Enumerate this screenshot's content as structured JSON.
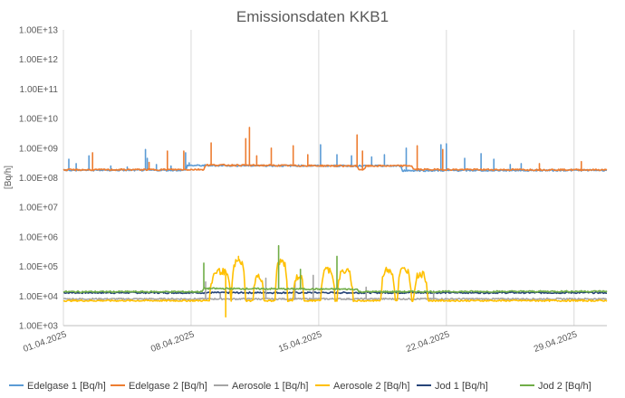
{
  "chart_data": {
    "type": "line",
    "title": "Emissionsdaten KKB1",
    "xlabel": "",
    "ylabel": "[Bq/h]",
    "yscale": "log",
    "ylim": [
      1000,
      10000000000000
    ],
    "xlim": [
      "01.04.2025",
      "30.04.2025"
    ],
    "grid": "vertical",
    "legend_position": "bottom",
    "y_tick_labels": [
      "1.00E+03",
      "1.00E+04",
      "1.00E+05",
      "1.00E+06",
      "1.00E+07",
      "1.00E+08",
      "1.00E+09",
      "1.00E+10",
      "1.00E+11",
      "1.00E+12",
      "1.00E+13"
    ],
    "x_tick_labels": [
      "01.04.2025",
      "08.04.2025",
      "15.04.2025",
      "22.04.2025",
      "29.04.2025"
    ],
    "x_unit": "day of April 2025",
    "series": [
      {
        "name": "Edelgase 1 [Bq/h]",
        "color": "#5b9bd5",
        "baseline": [
          [
            1,
            180000000
          ],
          [
            7.7,
            180000000
          ],
          [
            7.8,
            260000000
          ],
          [
            19.5,
            250000000
          ],
          [
            19.6,
            175000000
          ],
          [
            31,
            180000000
          ]
        ],
        "spikes": [
          [
            1.3,
            420000000
          ],
          [
            1.7,
            300000000
          ],
          [
            2.4,
            550000000
          ],
          [
            3.6,
            250000000
          ],
          [
            4.5,
            230000000
          ],
          [
            5.5,
            900000000
          ],
          [
            5.6,
            450000000
          ],
          [
            6.1,
            280000000
          ],
          [
            6.9,
            250000000
          ],
          [
            7.7,
            700000000
          ],
          [
            7.9,
            320000000
          ],
          [
            15.1,
            1300000000
          ],
          [
            16.0,
            600000000
          ],
          [
            16.8,
            550000000
          ],
          [
            17.9,
            500000000
          ],
          [
            18.6,
            600000000
          ],
          [
            19.8,
            1000000000
          ],
          [
            21.7,
            1300000000
          ],
          [
            22.0,
            1400000000
          ],
          [
            23.0,
            450000000
          ],
          [
            23.9,
            650000000
          ],
          [
            24.6,
            420000000
          ],
          [
            25.5,
            280000000
          ],
          [
            26.1,
            300000000
          ]
        ]
      },
      {
        "name": "Edelgase 2 [Bq/h]",
        "color": "#ed7d31",
        "baseline": [
          [
            1,
            185000000
          ],
          [
            8.7,
            190000000
          ],
          [
            8.8,
            270000000
          ],
          [
            17.1,
            250000000
          ],
          [
            17.2,
            190000000
          ],
          [
            17.5,
            190000000
          ],
          [
            17.6,
            250000000
          ],
          [
            20.1,
            255000000
          ],
          [
            20.2,
            190000000
          ],
          [
            31,
            185000000
          ]
        ],
        "spikes": [
          [
            2.6,
            700000000
          ],
          [
            5.7,
            330000000
          ],
          [
            6.7,
            800000000
          ],
          [
            7.6,
            800000000
          ],
          [
            9.1,
            1500000000
          ],
          [
            11.0,
            2100000000
          ],
          [
            11.2,
            5000000000
          ],
          [
            11.6,
            550000000
          ],
          [
            12.4,
            1000000000
          ],
          [
            13.6,
            1200000000
          ],
          [
            14.4,
            600000000
          ],
          [
            17.1,
            2800000000
          ],
          [
            17.4,
            800000000
          ],
          [
            20.4,
            1200000000
          ],
          [
            21.8,
            900000000
          ],
          [
            27.1,
            300000000
          ],
          [
            29.4,
            350000000
          ]
        ]
      },
      {
        "name": "Aerosole 1 [Bq/h]",
        "color": "#a5a5a5",
        "baseline": [
          [
            1,
            8000
          ],
          [
            31,
            8000
          ]
        ],
        "spikes": [
          [
            8.8,
            30000
          ],
          [
            9.6,
            12000
          ],
          [
            12.1,
            40000
          ],
          [
            13.7,
            30000
          ],
          [
            14.7,
            50000
          ],
          [
            17.6,
            20000
          ],
          [
            21.3,
            15000
          ]
        ]
      },
      {
        "name": "Aerosole 2 [Bq/h]",
        "color": "#ffc000",
        "baseline": [
          [
            1,
            7000
          ],
          [
            31,
            7000
          ]
        ],
        "bursts": [
          [
            9.0,
            10.2,
            70000
          ],
          [
            10.2,
            11.0,
            150000
          ],
          [
            11.4,
            12.0,
            45000
          ],
          [
            12.6,
            13.3,
            150000
          ],
          [
            13.6,
            14.2,
            45000
          ],
          [
            15.1,
            15.9,
            80000
          ],
          [
            16.0,
            16.9,
            70000
          ],
          [
            18.4,
            19.2,
            80000
          ],
          [
            19.3,
            20.1,
            80000
          ],
          [
            20.2,
            21.0,
            55000
          ]
        ],
        "spikes": [
          [
            10.6,
            220000
          ],
          [
            9.9,
            2000
          ]
        ]
      },
      {
        "name": "Jod 1 [Bq/h]",
        "color": "#264478",
        "baseline": [
          [
            1,
            13000
          ],
          [
            31,
            13000
          ]
        ],
        "spikes": []
      },
      {
        "name": "Jod 2 [Bq/h]",
        "color": "#70ad47",
        "baseline": [
          [
            1,
            14000
          ],
          [
            8.6,
            14000
          ],
          [
            8.7,
            18000
          ],
          [
            17.1,
            17000
          ],
          [
            17.2,
            14000
          ],
          [
            31,
            14500
          ]
        ],
        "spikes": [
          [
            8.7,
            130000
          ],
          [
            12.8,
            500000
          ],
          [
            16.0,
            220000
          ],
          [
            14.0,
            80000
          ]
        ]
      }
    ]
  }
}
